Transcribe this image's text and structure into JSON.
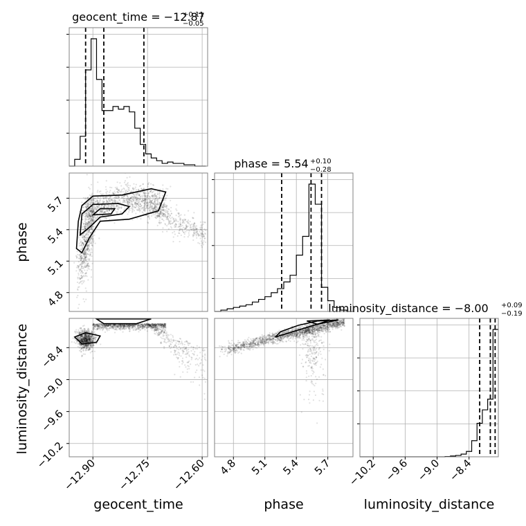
{
  "chart_data": {
    "type": "corner",
    "parameters": [
      {
        "name": "geocent_time",
        "axis_label": "geocent_time",
        "title_main": "geocent_time = −12.87",
        "title_sup": "+0.11",
        "title_sub": "−0.05",
        "range": [
          -12.965,
          -12.585
        ],
        "ticks": [
          -12.9,
          -12.75,
          -12.6
        ],
        "tick_labels": [
          "−12.90",
          "−12.75",
          "−12.60"
        ],
        "quantiles": [
          -12.92,
          -12.87,
          -12.76
        ],
        "hist": {
          "bins": [
            -12.965,
            -12.95,
            -12.935,
            -12.92,
            -12.905,
            -12.89,
            -12.875,
            -12.86,
            -12.845,
            -12.83,
            -12.815,
            -12.8,
            -12.785,
            -12.77,
            -12.755,
            -12.74,
            -12.725,
            -12.71,
            -12.695,
            -12.68,
            -12.665,
            -12.65,
            -12.635,
            -12.62,
            -12.605,
            -12.59
          ],
          "counts": [
            0,
            0.05,
            0.22,
            0.71,
            0.94,
            0.64,
            0.41,
            0.41,
            0.44,
            0.42,
            0.44,
            0.4,
            0.28,
            0.16,
            0.09,
            0.06,
            0.04,
            0.02,
            0.03,
            0.02,
            0.02,
            0.01,
            0.01,
            0,
            0
          ]
        }
      },
      {
        "name": "phase",
        "axis_label": "phase",
        "title_main": "phase = 5.54",
        "title_sup": "+0.10",
        "title_sub": "−0.28",
        "range": [
          4.62,
          5.94
        ],
        "ticks": [
          4.8,
          5.1,
          5.4,
          5.7
        ],
        "tick_labels": [
          "4.8",
          "5.1",
          "5.4",
          "5.7"
        ],
        "quantiles": [
          5.26,
          5.54,
          5.64
        ],
        "hist": {
          "bins": [
            4.62,
            4.68,
            4.74,
            4.8,
            4.86,
            4.92,
            4.98,
            5.04,
            5.1,
            5.16,
            5.22,
            5.28,
            5.34,
            5.4,
            5.46,
            5.52,
            5.58,
            5.64,
            5.7,
            5.76,
            5.82,
            5.88,
            5.94
          ],
          "counts": [
            0,
            0.01,
            0.02,
            0.03,
            0.04,
            0.05,
            0.07,
            0.09,
            0.11,
            0.14,
            0.17,
            0.22,
            0.27,
            0.42,
            0.56,
            0.95,
            0.8,
            0.18,
            0.08,
            0.03,
            0.01,
            0
          ]
        }
      },
      {
        "name": "luminosity_distance",
        "axis_label": "luminosity_distance",
        "title_main": "luminosity_distance = −8.00",
        "title_sup": "+0.09",
        "title_sub": "−0.19",
        "range": [
          -10.45,
          -7.85
        ],
        "ticks": [
          -10.2,
          -9.6,
          -9.0,
          -8.4
        ],
        "tick_labels": [
          "−10.2",
          "−9.6",
          "−9.0",
          "−8.4"
        ],
        "quantiles": [
          -8.2,
          -8.0,
          -7.91
        ],
        "hist": {
          "bins": [
            -10.45,
            -10.35,
            -10.25,
            -10.15,
            -10.05,
            -9.95,
            -9.85,
            -9.75,
            -9.65,
            -9.55,
            -9.45,
            -9.35,
            -9.25,
            -9.15,
            -9.05,
            -8.95,
            -8.85,
            -8.75,
            -8.65,
            -8.55,
            -8.45,
            -8.35,
            -8.25,
            -8.15,
            -8.05,
            -7.95,
            -7.85
          ],
          "counts": [
            0,
            0,
            0,
            0,
            0,
            0,
            0,
            0,
            0,
            0,
            0,
            0,
            0,
            0,
            0,
            0,
            0.002,
            0.006,
            0.01,
            0.02,
            0.04,
            0.12,
            0.25,
            0.35,
            0.43,
            0.95
          ]
        }
      }
    ],
    "grid": true,
    "quantile_levels": [
      0.16,
      0.5,
      0.84
    ]
  }
}
